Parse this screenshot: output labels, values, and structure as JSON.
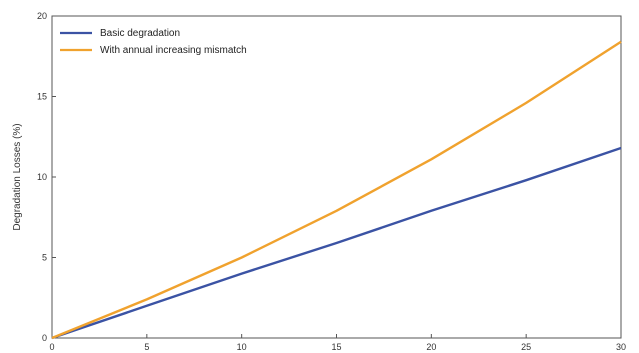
{
  "chart_data": {
    "type": "line",
    "title": "",
    "xlabel": "",
    "ylabel": "Degradation Losses (%)",
    "xlim": [
      0,
      30
    ],
    "ylim": [
      0,
      20
    ],
    "x_ticks": [
      0,
      5,
      10,
      15,
      20,
      25,
      30
    ],
    "y_ticks": [
      0,
      5,
      10,
      15,
      20
    ],
    "grid": false,
    "legend_position": "top-left",
    "series": [
      {
        "name": "Basic degradation",
        "color": "#3b53a4",
        "x": [
          0,
          5,
          10,
          15,
          20,
          25,
          30
        ],
        "values": [
          0,
          2.0,
          4.0,
          5.9,
          7.9,
          9.8,
          11.8
        ]
      },
      {
        "name": "With annual increasing mismatch",
        "color": "#f0a22e",
        "x": [
          0,
          5,
          10,
          15,
          20,
          25,
          30
        ],
        "values": [
          0,
          2.4,
          5.0,
          7.9,
          11.1,
          14.6,
          18.4
        ]
      }
    ]
  }
}
